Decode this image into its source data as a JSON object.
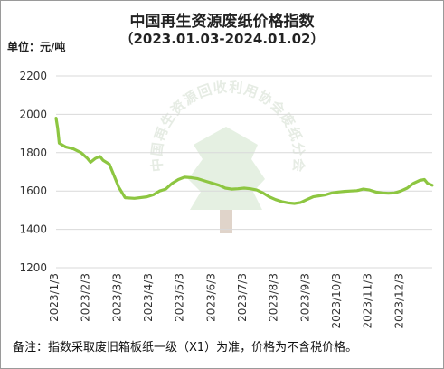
{
  "chart_data": {
    "type": "line",
    "title": "中国再生资源废纸价格指数",
    "subtitle": "（2023.01.03-2024.01.02）",
    "unit": "单位：元/吨",
    "ylim": [
      1200,
      2200
    ],
    "yticks": [
      1200,
      1400,
      1600,
      1800,
      2000,
      2200
    ],
    "xticks": [
      "2023/1/3",
      "2023/2/3",
      "2023/3/3",
      "2023/4/3",
      "2023/5/3",
      "2023/6/3",
      "2023/7/3",
      "2023/8/3",
      "2023/9/3",
      "2023/10/3",
      "2023/11/3",
      "2023/12/3"
    ],
    "grid": "horizontal",
    "line_color": "#8dc641",
    "watermark": "中国再生资源回收利用协会废纸分会",
    "series": [
      {
        "points": [
          [
            0,
            1980
          ],
          [
            0.05,
            1930
          ],
          [
            0.1,
            1850
          ],
          [
            0.3,
            1830
          ],
          [
            0.55,
            1820
          ],
          [
            0.8,
            1800
          ],
          [
            1.0,
            1770
          ],
          [
            1.1,
            1750
          ],
          [
            1.25,
            1770
          ],
          [
            1.4,
            1780
          ],
          [
            1.5,
            1760
          ],
          [
            1.7,
            1740
          ],
          [
            1.85,
            1680
          ],
          [
            2.0,
            1620
          ],
          [
            2.2,
            1565
          ],
          [
            2.5,
            1562
          ],
          [
            2.9,
            1570
          ],
          [
            3.1,
            1580
          ],
          [
            3.3,
            1600
          ],
          [
            3.5,
            1610
          ],
          [
            3.7,
            1640
          ],
          [
            3.9,
            1660
          ],
          [
            4.1,
            1672
          ],
          [
            4.3,
            1670
          ],
          [
            4.5,
            1665
          ],
          [
            4.8,
            1650
          ],
          [
            5.0,
            1640
          ],
          [
            5.2,
            1630
          ],
          [
            5.4,
            1615
          ],
          [
            5.6,
            1610
          ],
          [
            5.8,
            1612
          ],
          [
            6.0,
            1615
          ],
          [
            6.2,
            1612
          ],
          [
            6.4,
            1605
          ],
          [
            6.6,
            1590
          ],
          [
            6.8,
            1570
          ],
          [
            7.0,
            1555
          ],
          [
            7.2,
            1545
          ],
          [
            7.4,
            1538
          ],
          [
            7.6,
            1535
          ],
          [
            7.8,
            1540
          ],
          [
            8.0,
            1555
          ],
          [
            8.2,
            1570
          ],
          [
            8.4,
            1575
          ],
          [
            8.6,
            1580
          ],
          [
            8.8,
            1590
          ],
          [
            9.0,
            1595
          ],
          [
            9.2,
            1598
          ],
          [
            9.4,
            1600
          ],
          [
            9.6,
            1602
          ],
          [
            9.8,
            1610
          ],
          [
            10.0,
            1605
          ],
          [
            10.2,
            1595
          ],
          [
            10.4,
            1590
          ],
          [
            10.6,
            1588
          ],
          [
            10.8,
            1590
          ],
          [
            11.0,
            1600
          ],
          [
            11.2,
            1615
          ],
          [
            11.4,
            1640
          ],
          [
            11.6,
            1655
          ],
          [
            11.75,
            1660
          ],
          [
            11.85,
            1640
          ],
          [
            12.0,
            1630
          ]
        ]
      }
    ]
  },
  "footnote": "备注：指数采取废旧箱板纸一级（X1）为准，价格为不含税价格。"
}
